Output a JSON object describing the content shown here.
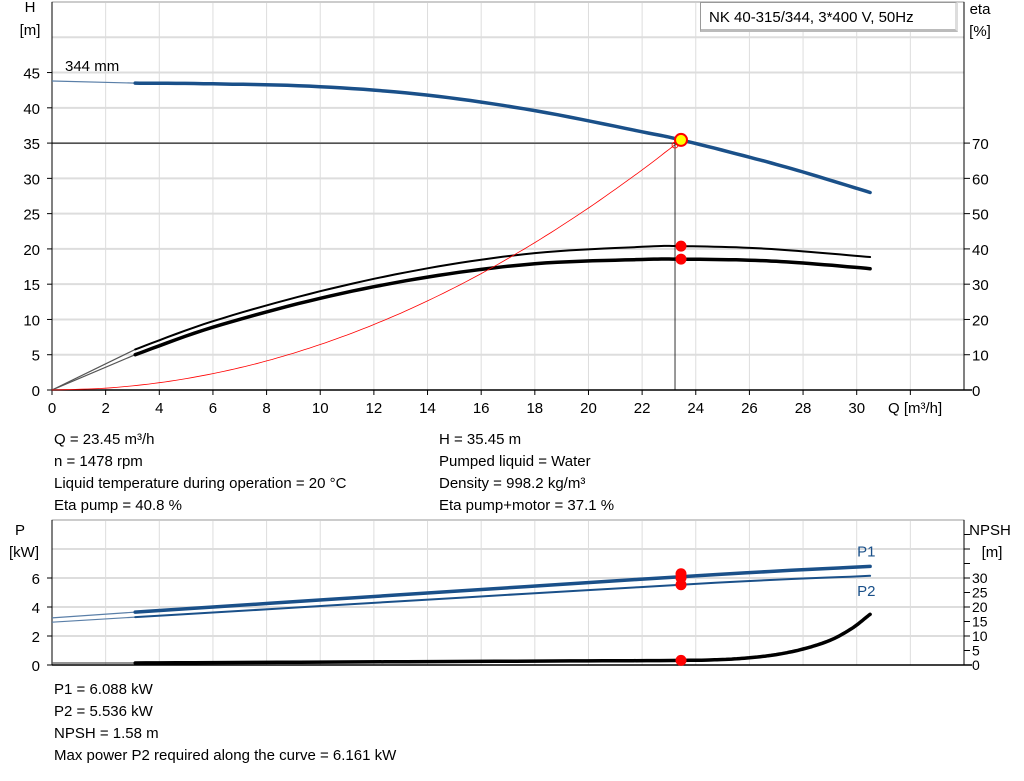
{
  "chart_data": [
    {
      "type": "line",
      "title": "NK 40-315/344, 3*400 V, 50Hz",
      "xlabel": "Q [m³/h]",
      "ylabel_left": [
        "H",
        "[m]"
      ],
      "ylabel_right": [
        "eta",
        "[%]"
      ],
      "xlim": [
        0,
        34
      ],
      "ylim_left": [
        0,
        55
      ],
      "ylim_right": [
        0,
        110
      ],
      "x_ticks": [
        0,
        2,
        4,
        6,
        8,
        10,
        12,
        14,
        16,
        18,
        20,
        22,
        24,
        26,
        28,
        30
      ],
      "y_ticks_left": [
        0,
        5,
        10,
        15,
        20,
        25,
        30,
        35,
        40,
        45
      ],
      "y_ticks_right": [
        0,
        10,
        20,
        30,
        40,
        50,
        60,
        70
      ],
      "grid": true,
      "curve_label": "344 mm",
      "series": [
        {
          "key": "H",
          "axis": "left",
          "color": "#1a5089",
          "x": [
            3.1,
            6,
            10,
            14,
            18,
            22,
            23.45,
            26,
            28,
            30.5
          ],
          "y": [
            43.5,
            43.4,
            43.0,
            41.8,
            39.6,
            36.6,
            35.45,
            33.0,
            30.9,
            28.0
          ],
          "extrapolated": {
            "x": [
              0,
              3.1
            ],
            "y": [
              43.8,
              43.5
            ]
          }
        },
        {
          "key": "eta_pump",
          "axis": "right",
          "color": "#000000",
          "x": [
            3.1,
            6,
            10,
            14,
            18,
            22,
            23.45,
            26,
            28,
            30.5
          ],
          "y": [
            11.5,
            19.5,
            28,
            34.5,
            38.8,
            40.6,
            40.8,
            40.3,
            39.3,
            37.7
          ],
          "extrapolated": {
            "x": [
              0,
              3.1
            ],
            "y": [
              0,
              11.5
            ]
          }
        },
        {
          "key": "eta_pump_motor",
          "axis": "right",
          "color": "#000000",
          "x": [
            3.1,
            6,
            10,
            14,
            18,
            22,
            23.45,
            26,
            28,
            30.5
          ],
          "y": [
            10,
            17.8,
            26,
            32,
            35.8,
            37,
            37.1,
            36.8,
            36,
            34.4
          ],
          "extrapolated": {
            "x": [
              0,
              3.1
            ],
            "y": [
              0,
              10
            ]
          }
        },
        {
          "key": "system_curve",
          "axis": "left",
          "color": "#ff0000",
          "x": [
            0,
            2,
            4,
            6,
            8,
            10,
            12,
            14,
            16,
            18,
            20,
            22,
            23.45
          ],
          "y": [
            0,
            0.26,
            1.03,
            2.32,
            4.12,
            6.45,
            9.28,
            12.63,
            16.5,
            20.9,
            25.8,
            31.2,
            35.45
          ]
        }
      ],
      "operating_point": {
        "Q": 23.45,
        "H": 35.45,
        "eta_pump": 40.8,
        "eta_pump_motor": 37.1
      }
    },
    {
      "type": "line",
      "ylabel_left": [
        "P",
        "[kW]"
      ],
      "ylabel_right": [
        "NPSH",
        "[m]"
      ],
      "xlim": [
        0,
        34
      ],
      "ylim_left": [
        0,
        10
      ],
      "ylim_right": [
        0,
        50
      ],
      "x_ticks": [
        0,
        2,
        4,
        6,
        8,
        10,
        12,
        14,
        16,
        18,
        20,
        22,
        24,
        26,
        28,
        30
      ],
      "y_ticks_left": [
        0,
        2,
        4,
        6
      ],
      "y_ticks_right": [
        0,
        5,
        10,
        15,
        20,
        25,
        30
      ],
      "grid": true,
      "series": [
        {
          "key": "P1",
          "name": "P1",
          "axis": "left",
          "color": "#1a5089",
          "x": [
            3.1,
            23.45,
            30.5
          ],
          "y": [
            3.65,
            6.088,
            6.8
          ],
          "extrapolated": {
            "x": [
              0,
              3.1
            ],
            "y": [
              3.25,
              3.65
            ]
          }
        },
        {
          "key": "P2",
          "name": "P2",
          "axis": "left",
          "color": "#1a5089",
          "x": [
            3.1,
            23.45,
            30.5
          ],
          "y": [
            3.3,
            5.536,
            6.15
          ],
          "extrapolated": {
            "x": [
              0,
              3.1
            ],
            "y": [
              2.95,
              3.3
            ]
          }
        },
        {
          "key": "NPSH",
          "axis": "right",
          "color": "#000000",
          "x": [
            3.1,
            10,
            18,
            23.45,
            25,
            26,
            27,
            28,
            29,
            29.8,
            30.5
          ],
          "y": [
            0.7,
            1.0,
            1.35,
            1.58,
            1.9,
            2.5,
            3.6,
            5.5,
            8.5,
            12.5,
            17.5
          ],
          "extrapolated": {
            "x": [
              0,
              3.1
            ],
            "y": [
              0.7,
              0.7
            ]
          }
        }
      ],
      "operating_point": {
        "Q": 23.45,
        "P1": 6.088,
        "P2": 5.536,
        "NPSH": 1.58
      }
    }
  ],
  "info_top_left": [
    "Q = 23.45 m³/h",
    "n = 1478 rpm",
    "Liquid temperature during operation = 20 °C",
    "Eta pump = 40.8 %"
  ],
  "info_top_right": [
    "H = 35.45 m",
    "Pumped liquid = Water",
    "Density = 998.2 kg/m³",
    "Eta pump+motor = 37.1 %"
  ],
  "info_bottom": [
    "P1 = 6.088 kW",
    "P2 = 5.536 kW",
    "NPSH = 1.58 m",
    "Max power P2 required along the curve = 6.161 kW"
  ]
}
